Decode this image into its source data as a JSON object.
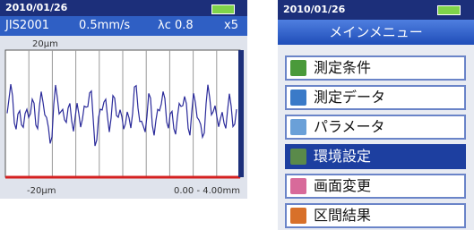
{
  "left_screen": {
    "status_bar": {
      "date": "2010/01/26"
    },
    "info_bar": {
      "standard": "JIS2001",
      "speed": "0.5mm/s",
      "cutoff": "λc 0.8",
      "magnification": "x5"
    },
    "plot": {
      "y_max_label": "20μm",
      "y_min_label": "-20μm",
      "range_label": "0.00 - 4.00mm"
    }
  },
  "right_screen": {
    "status_bar": {
      "date": "2010/01/26"
    },
    "title": "メインメニュー",
    "menu_items": [
      "測定条件",
      "測定データ",
      "パラメータ",
      "環境設定",
      "画面変更",
      "区間結果"
    ],
    "selected_index": 3
  }
}
